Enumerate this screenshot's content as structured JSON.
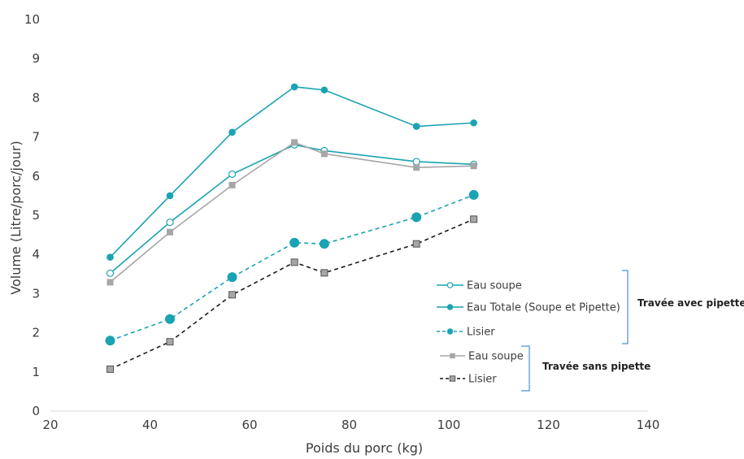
{
  "chart_data": {
    "type": "line",
    "xlabel": "Poids du porc (kg)",
    "ylabel": "Volume (Litre/porc/jour)",
    "xlim": [
      20,
      140
    ],
    "ylim": [
      0,
      10
    ],
    "xticks": [
      "20",
      "40",
      "60",
      "80",
      "100",
      "120",
      "140"
    ],
    "yticks": [
      "0",
      "1",
      "2",
      "3",
      "4",
      "5",
      "6",
      "7",
      "8",
      "9",
      "10"
    ],
    "grid": false,
    "x": [
      32,
      44,
      56.5,
      69,
      75,
      93.5,
      105
    ],
    "series": [
      {
        "name": "Eau soupe",
        "group": "avec",
        "values": [
          3.52,
          4.82,
          6.05,
          6.8,
          6.65,
          6.37,
          6.3
        ],
        "color": "#1aa3b3",
        "marker": "open-circle",
        "dash": "solid"
      },
      {
        "name": "Eau Totale (Soupe et Pipette)",
        "group": "avec",
        "values": [
          3.93,
          5.5,
          7.12,
          8.28,
          8.2,
          7.27,
          7.36
        ],
        "color": "#1aa3b3",
        "marker": "filled-circle",
        "dash": "solid"
      },
      {
        "name": "Lisier",
        "group": "avec",
        "values": [
          1.8,
          2.35,
          3.42,
          4.3,
          4.27,
          4.95,
          5.52
        ],
        "color": "#1aa3b3",
        "marker": "filled-circle",
        "dash": "dashed"
      },
      {
        "name": "Eau soupe",
        "group": "sans",
        "values": [
          3.29,
          4.57,
          5.77,
          6.86,
          6.57,
          6.22,
          6.26
        ],
        "color": "#a6a6a6",
        "marker": "square",
        "dash": "solid"
      },
      {
        "name": "Lisier",
        "group": "sans",
        "values": [
          1.07,
          1.77,
          2.97,
          3.8,
          3.53,
          4.27,
          4.9
        ],
        "color": "#1a1a1a",
        "marker": "gray-square",
        "dash": "dashed"
      }
    ],
    "legend_groups": {
      "avec": "Travée avec pipette",
      "sans": "Travée sans pipette"
    },
    "legend_position": "right"
  }
}
